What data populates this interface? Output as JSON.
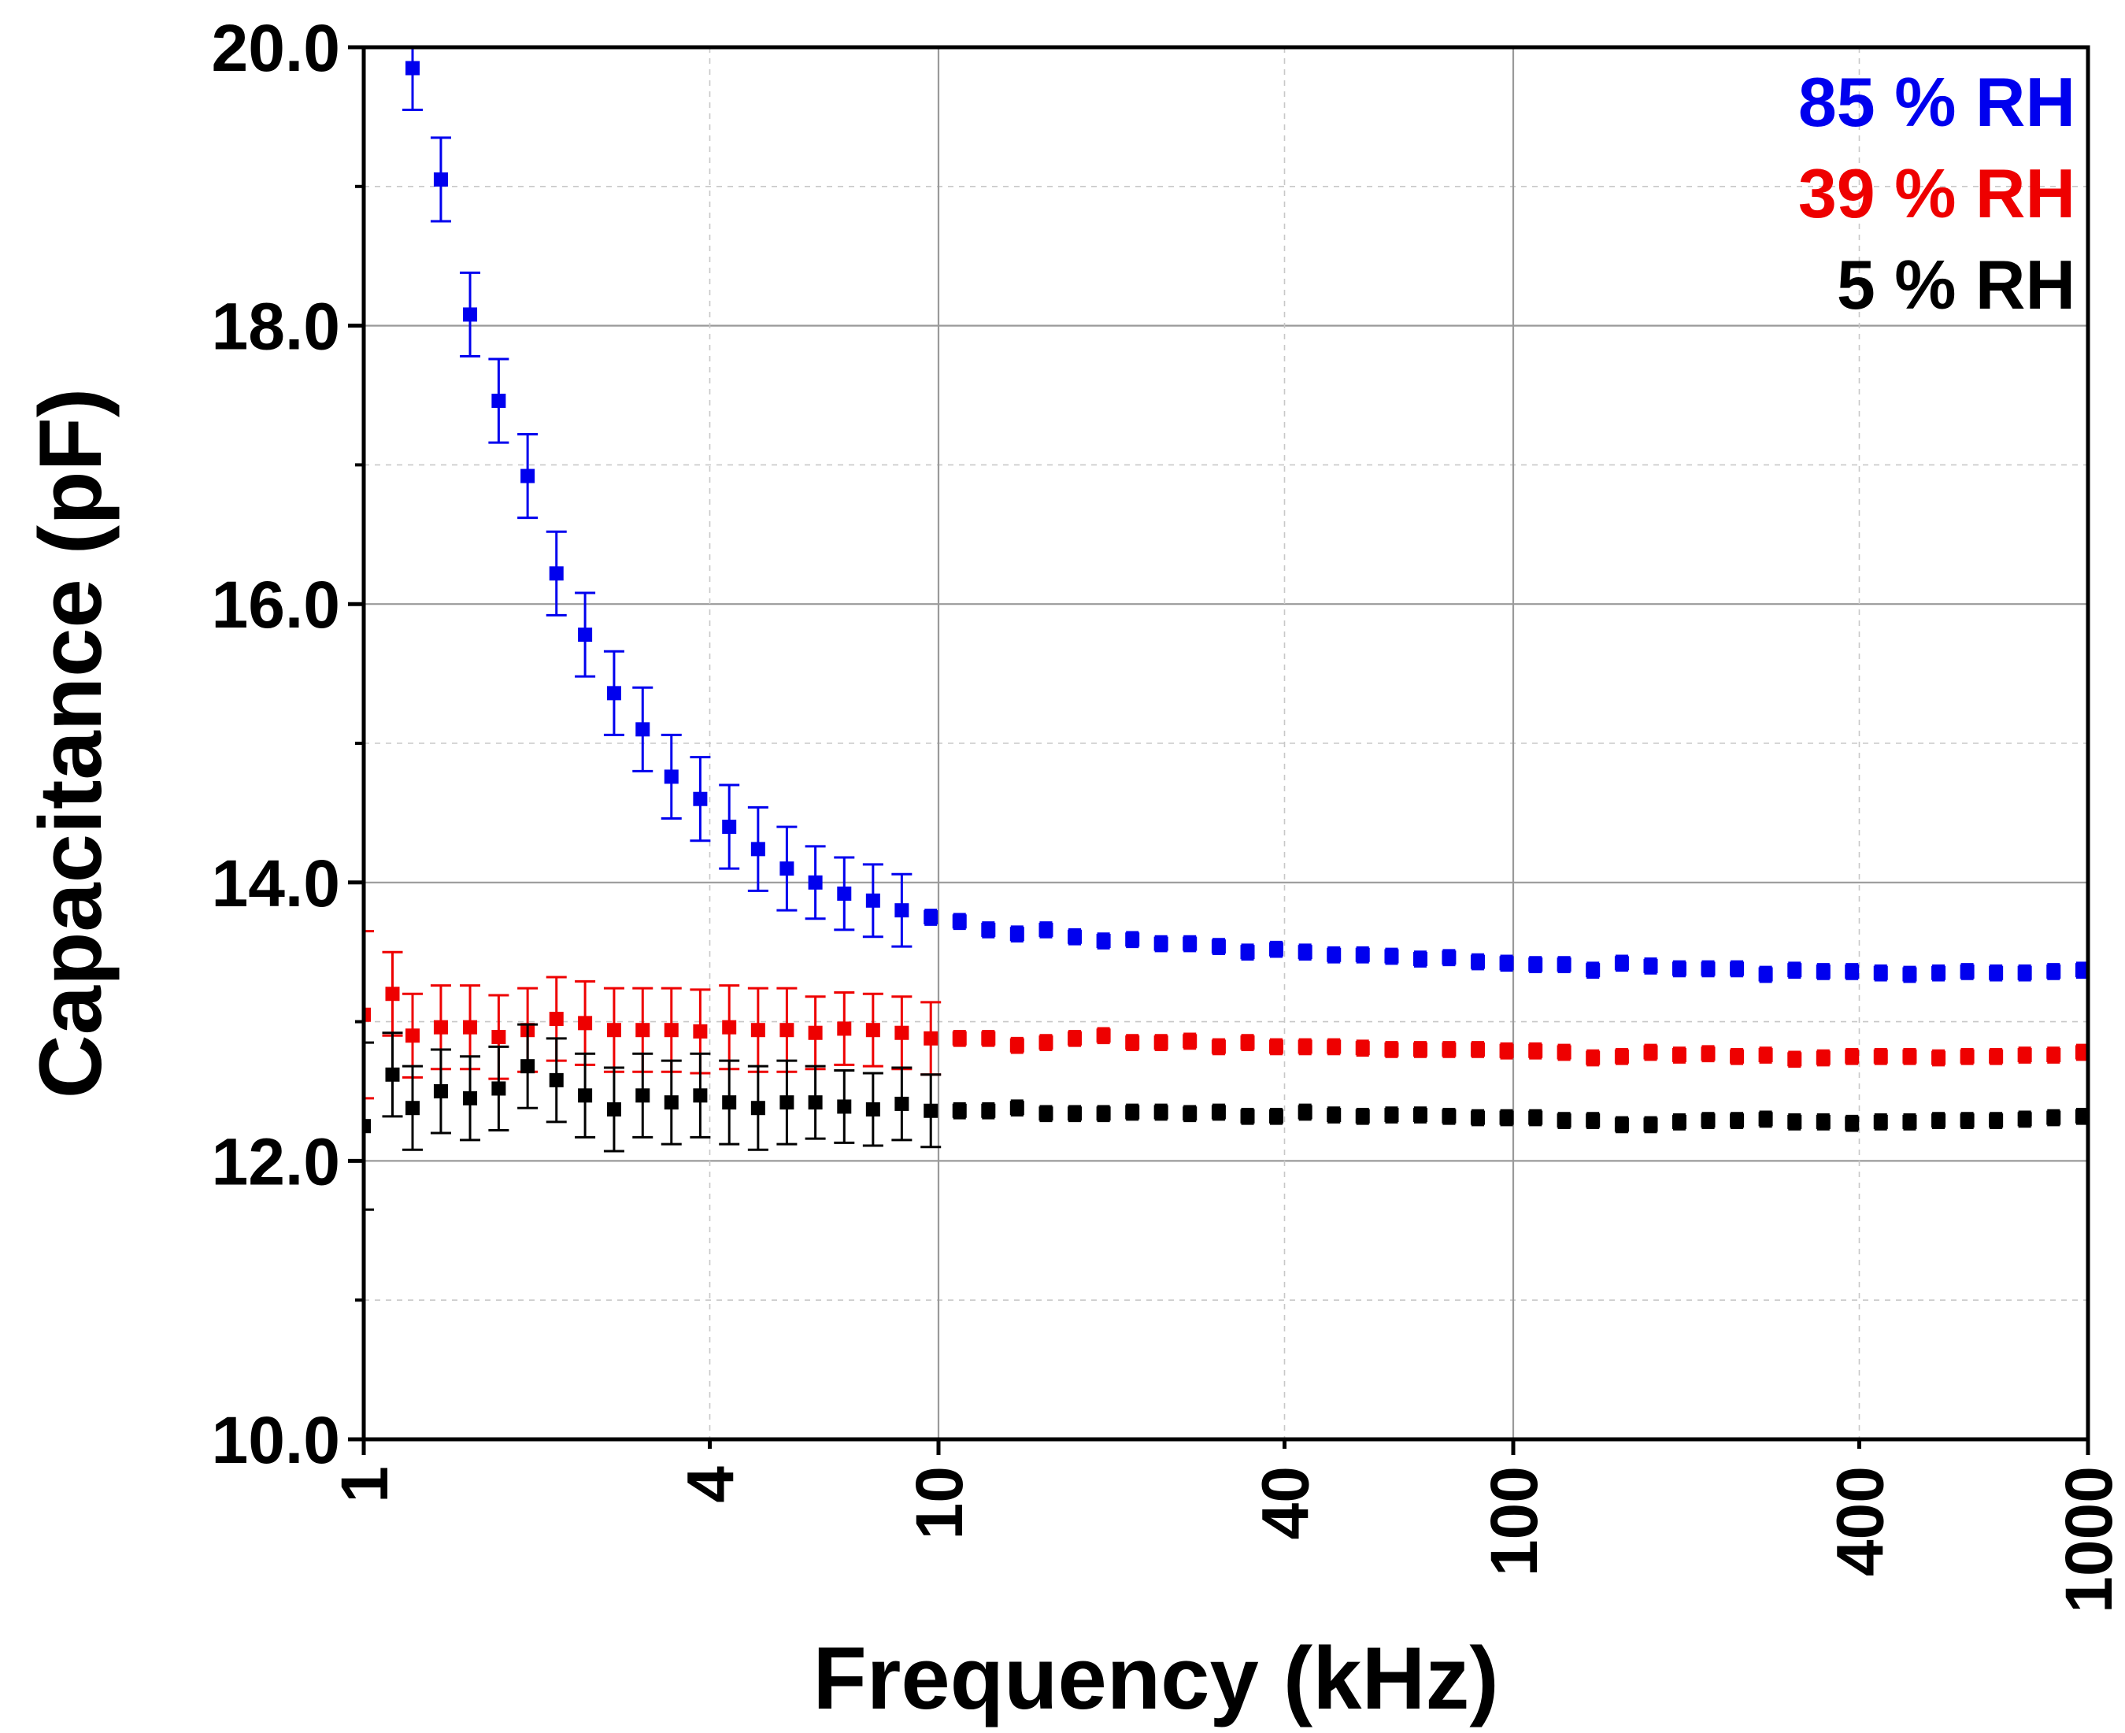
{
  "chart_data": {
    "type": "scatter",
    "title": "",
    "xlabel": "Frequency (kHz)",
    "ylabel": "Capacitance (pF)",
    "xscale": "log",
    "xlim": [
      1,
      1000
    ],
    "ylim": [
      10,
      20
    ],
    "xticks": [
      {
        "value": 1,
        "label": "1"
      },
      {
        "value": 4,
        "label": "4"
      },
      {
        "value": 10,
        "label": "10"
      },
      {
        "value": 40,
        "label": "40"
      },
      {
        "value": 100,
        "label": "100"
      },
      {
        "value": 400,
        "label": "400"
      },
      {
        "value": 1000,
        "label": "1000"
      }
    ],
    "yticks": [
      {
        "value": 10,
        "label": "10.0"
      },
      {
        "value": 12,
        "label": "12.0"
      },
      {
        "value": 14,
        "label": "14.0"
      },
      {
        "value": 16,
        "label": "16.0"
      },
      {
        "value": 18,
        "label": "18.0"
      },
      {
        "value": 20,
        "label": "20.0"
      }
    ],
    "yminor": [
      11,
      13,
      15,
      17,
      19
    ],
    "grid": true,
    "legend_position": "top-right",
    "series": [
      {
        "name": "85 % RH",
        "color": "#0000ee",
        "x": [
          1.216,
          1.362,
          1.531,
          1.717,
          1.928,
          2.164,
          2.427,
          2.726,
          3.057,
          3.43,
          3.85,
          4.324,
          4.854,
          5.447,
          6.106,
          6.855,
          7.693,
          8.632,
          9.696,
          10.88,
          12.21,
          13.7,
          15.38,
          17.26,
          19.37,
          21.74,
          24.39,
          27.37,
          30.73,
          34.49,
          38.69,
          43.44,
          48.75,
          54.7,
          61.42,
          68.91,
          77.31,
          86.76,
          97.37,
          109.3,
          122.6,
          137.6,
          154.5,
          173.4,
          194.5,
          218.3,
          245.0,
          274.9,
          308.6,
          346.3,
          388.5,
          435.9,
          489.4,
          549.3,
          616.4,
          691.7,
          776.1,
          871.1,
          977.9
        ],
        "y": [
          19.85,
          19.05,
          18.08,
          17.46,
          16.92,
          16.22,
          15.78,
          15.36,
          15.1,
          14.76,
          14.6,
          14.4,
          14.24,
          14.1,
          14.0,
          13.92,
          13.87,
          13.8,
          13.75,
          13.72,
          13.66,
          13.63,
          13.66,
          13.61,
          13.58,
          13.59,
          13.56,
          13.56,
          13.54,
          13.5,
          13.52,
          13.5,
          13.48,
          13.48,
          13.47,
          13.45,
          13.46,
          13.43,
          13.42,
          13.41,
          13.41,
          13.37,
          13.42,
          13.4,
          13.38,
          13.38,
          13.38,
          13.34,
          13.37,
          13.36,
          13.36,
          13.35,
          13.34,
          13.35,
          13.36,
          13.35,
          13.35,
          13.36,
          13.37
        ],
        "err": [
          0.3,
          0.3,
          0.3,
          0.3,
          0.3,
          0.3,
          0.3,
          0.3,
          0.3,
          0.3,
          0.3,
          0.3,
          0.3,
          0.3,
          0.26,
          0.26,
          0.26,
          0.26,
          0.05,
          0.05,
          0.05,
          0.05,
          0.05,
          0.05,
          0.05,
          0.05,
          0.05,
          0.05,
          0.05,
          0.05,
          0.05,
          0.05,
          0.05,
          0.05,
          0.05,
          0.05,
          0.05,
          0.05,
          0.05,
          0.05,
          0.05,
          0.05,
          0.05,
          0.05,
          0.05,
          0.05,
          0.05,
          0.05,
          0.05,
          0.05,
          0.05,
          0.05,
          0.05,
          0.05,
          0.05,
          0.05,
          0.05,
          0.05,
          0.05
        ]
      },
      {
        "name": "39 % RH",
        "color": "#ee0000",
        "x": [
          1.0,
          1.122,
          1.216,
          1.362,
          1.531,
          1.717,
          1.928,
          2.164,
          2.427,
          2.726,
          3.057,
          3.43,
          3.85,
          4.324,
          4.854,
          5.447,
          6.106,
          6.855,
          7.693,
          8.632,
          9.696,
          10.88,
          12.21,
          13.7,
          15.38,
          17.26,
          19.37,
          21.74,
          24.39,
          27.37,
          30.73,
          34.49,
          38.69,
          43.44,
          48.75,
          54.7,
          61.42,
          68.91,
          77.31,
          86.76,
          97.37,
          109.3,
          122.6,
          137.6,
          154.5,
          173.4,
          194.5,
          218.3,
          245.0,
          274.9,
          308.6,
          346.3,
          388.5,
          435.9,
          489.4,
          549.3,
          616.4,
          691.7,
          776.1,
          871.1,
          977.9
        ],
        "y": [
          13.05,
          13.2,
          12.9,
          12.96,
          12.96,
          12.89,
          12.94,
          13.02,
          12.99,
          12.94,
          12.94,
          12.94,
          12.93,
          12.96,
          12.94,
          12.94,
          12.92,
          12.95,
          12.94,
          12.92,
          12.88,
          12.88,
          12.88,
          12.83,
          12.85,
          12.88,
          12.9,
          12.85,
          12.85,
          12.86,
          12.82,
          12.85,
          12.82,
          12.82,
          12.82,
          12.81,
          12.8,
          12.8,
          12.8,
          12.8,
          12.79,
          12.79,
          12.78,
          12.74,
          12.75,
          12.78,
          12.76,
          12.77,
          12.75,
          12.76,
          12.73,
          12.74,
          12.75,
          12.75,
          12.75,
          12.74,
          12.75,
          12.75,
          12.76,
          12.76,
          12.78
        ],
        "err": [
          0.6,
          0.3,
          0.3,
          0.3,
          0.3,
          0.3,
          0.3,
          0.3,
          0.3,
          0.3,
          0.3,
          0.3,
          0.3,
          0.3,
          0.3,
          0.3,
          0.26,
          0.26,
          0.26,
          0.26,
          0.26,
          0.05,
          0.05,
          0.05,
          0.05,
          0.05,
          0.05,
          0.05,
          0.05,
          0.05,
          0.05,
          0.05,
          0.05,
          0.05,
          0.05,
          0.05,
          0.05,
          0.05,
          0.05,
          0.05,
          0.05,
          0.05,
          0.05,
          0.05,
          0.05,
          0.05,
          0.05,
          0.05,
          0.05,
          0.05,
          0.05,
          0.05,
          0.05,
          0.05,
          0.05,
          0.05,
          0.05,
          0.05,
          0.05,
          0.05,
          0.05
        ]
      },
      {
        "name": "5 % RH",
        "color": "#000000",
        "x": [
          1.0,
          1.122,
          1.216,
          1.362,
          1.531,
          1.717,
          1.928,
          2.164,
          2.427,
          2.726,
          3.057,
          3.43,
          3.85,
          4.324,
          4.854,
          5.447,
          6.106,
          6.855,
          7.693,
          8.632,
          9.696,
          10.88,
          12.21,
          13.7,
          15.38,
          17.26,
          19.37,
          21.74,
          24.39,
          27.37,
          30.73,
          34.49,
          38.69,
          43.44,
          48.75,
          54.7,
          61.42,
          68.91,
          77.31,
          86.76,
          97.37,
          109.3,
          122.6,
          137.6,
          154.5,
          173.4,
          194.5,
          218.3,
          245.0,
          274.9,
          308.6,
          346.3,
          388.5,
          435.9,
          489.4,
          549.3,
          616.4,
          691.7,
          776.1,
          871.1,
          977.9
        ],
        "y": [
          12.25,
          12.62,
          12.38,
          12.5,
          12.45,
          12.52,
          12.68,
          12.58,
          12.47,
          12.37,
          12.47,
          12.42,
          12.47,
          12.42,
          12.38,
          12.42,
          12.42,
          12.39,
          12.37,
          12.41,
          12.36,
          12.36,
          12.36,
          12.38,
          12.34,
          12.34,
          12.34,
          12.35,
          12.35,
          12.34,
          12.35,
          12.32,
          12.32,
          12.35,
          12.33,
          12.32,
          12.33,
          12.33,
          12.32,
          12.31,
          12.31,
          12.31,
          12.29,
          12.29,
          12.26,
          12.26,
          12.28,
          12.29,
          12.29,
          12.3,
          12.28,
          12.28,
          12.27,
          12.28,
          12.28,
          12.29,
          12.29,
          12.29,
          12.3,
          12.31,
          12.32
        ],
        "err": [
          0.6,
          0.3,
          0.3,
          0.3,
          0.3,
          0.3,
          0.3,
          0.3,
          0.3,
          0.3,
          0.3,
          0.3,
          0.3,
          0.3,
          0.3,
          0.3,
          0.26,
          0.26,
          0.26,
          0.26,
          0.26,
          0.05,
          0.05,
          0.05,
          0.05,
          0.05,
          0.05,
          0.05,
          0.05,
          0.05,
          0.05,
          0.05,
          0.05,
          0.05,
          0.05,
          0.05,
          0.05,
          0.05,
          0.05,
          0.05,
          0.05,
          0.05,
          0.05,
          0.05,
          0.05,
          0.05,
          0.05,
          0.05,
          0.05,
          0.05,
          0.05,
          0.05,
          0.05,
          0.05,
          0.05,
          0.05,
          0.05,
          0.05,
          0.05,
          0.05,
          0.05
        ]
      }
    ]
  }
}
